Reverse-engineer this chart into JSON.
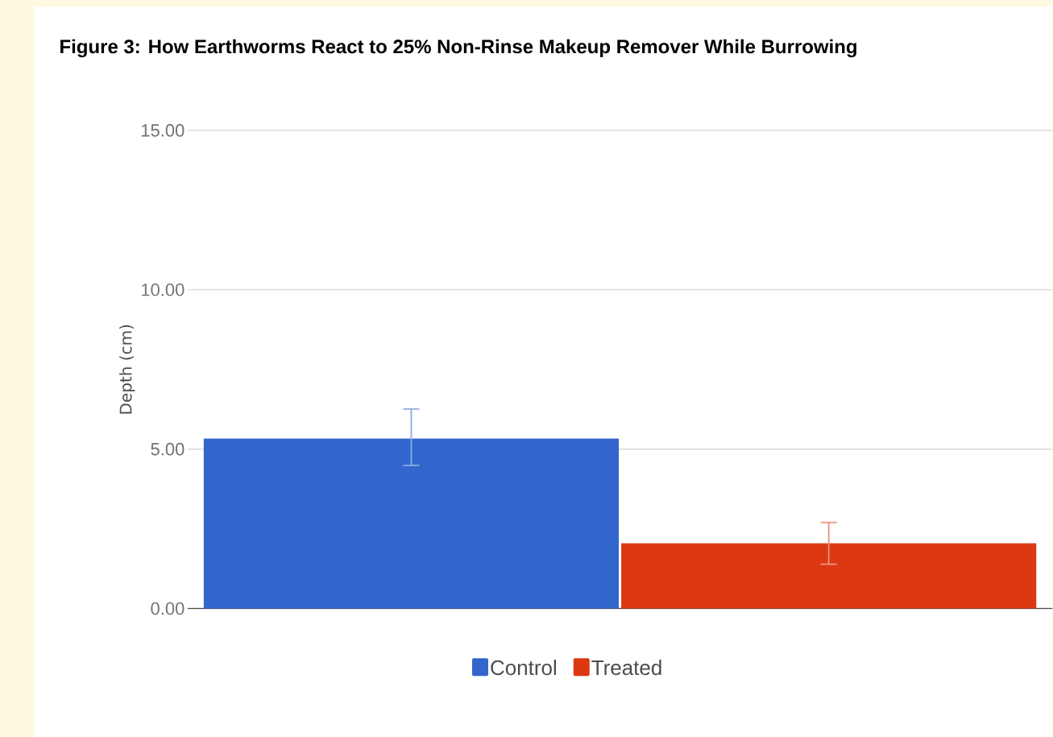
{
  "chart_data": {
    "type": "bar",
    "title": "Figure 3: How Earthworms React to 25% Non-Rinse Makeup Remover While Burrowing",
    "ylabel": "Depth (cm)",
    "categories": [
      null
    ],
    "series": [
      {
        "name": "Control",
        "color": "#3366cc",
        "values": [
          5.33
        ],
        "errors": [
          [
            4.49,
            6.26
          ]
        ]
      },
      {
        "name": "Treated",
        "color": "#dc3912",
        "values": [
          2.05
        ],
        "errors": [
          [
            1.39,
            2.7
          ]
        ]
      }
    ],
    "ylim": [
      0,
      15
    ],
    "yticks": [
      {
        "value": 0,
        "label": "0.00"
      },
      {
        "value": 5,
        "label": "5.00"
      },
      {
        "value": 10,
        "label": "10.00"
      },
      {
        "value": 15,
        "label": "15.00"
      }
    ],
    "grid": "y",
    "legend": "bottom"
  }
}
